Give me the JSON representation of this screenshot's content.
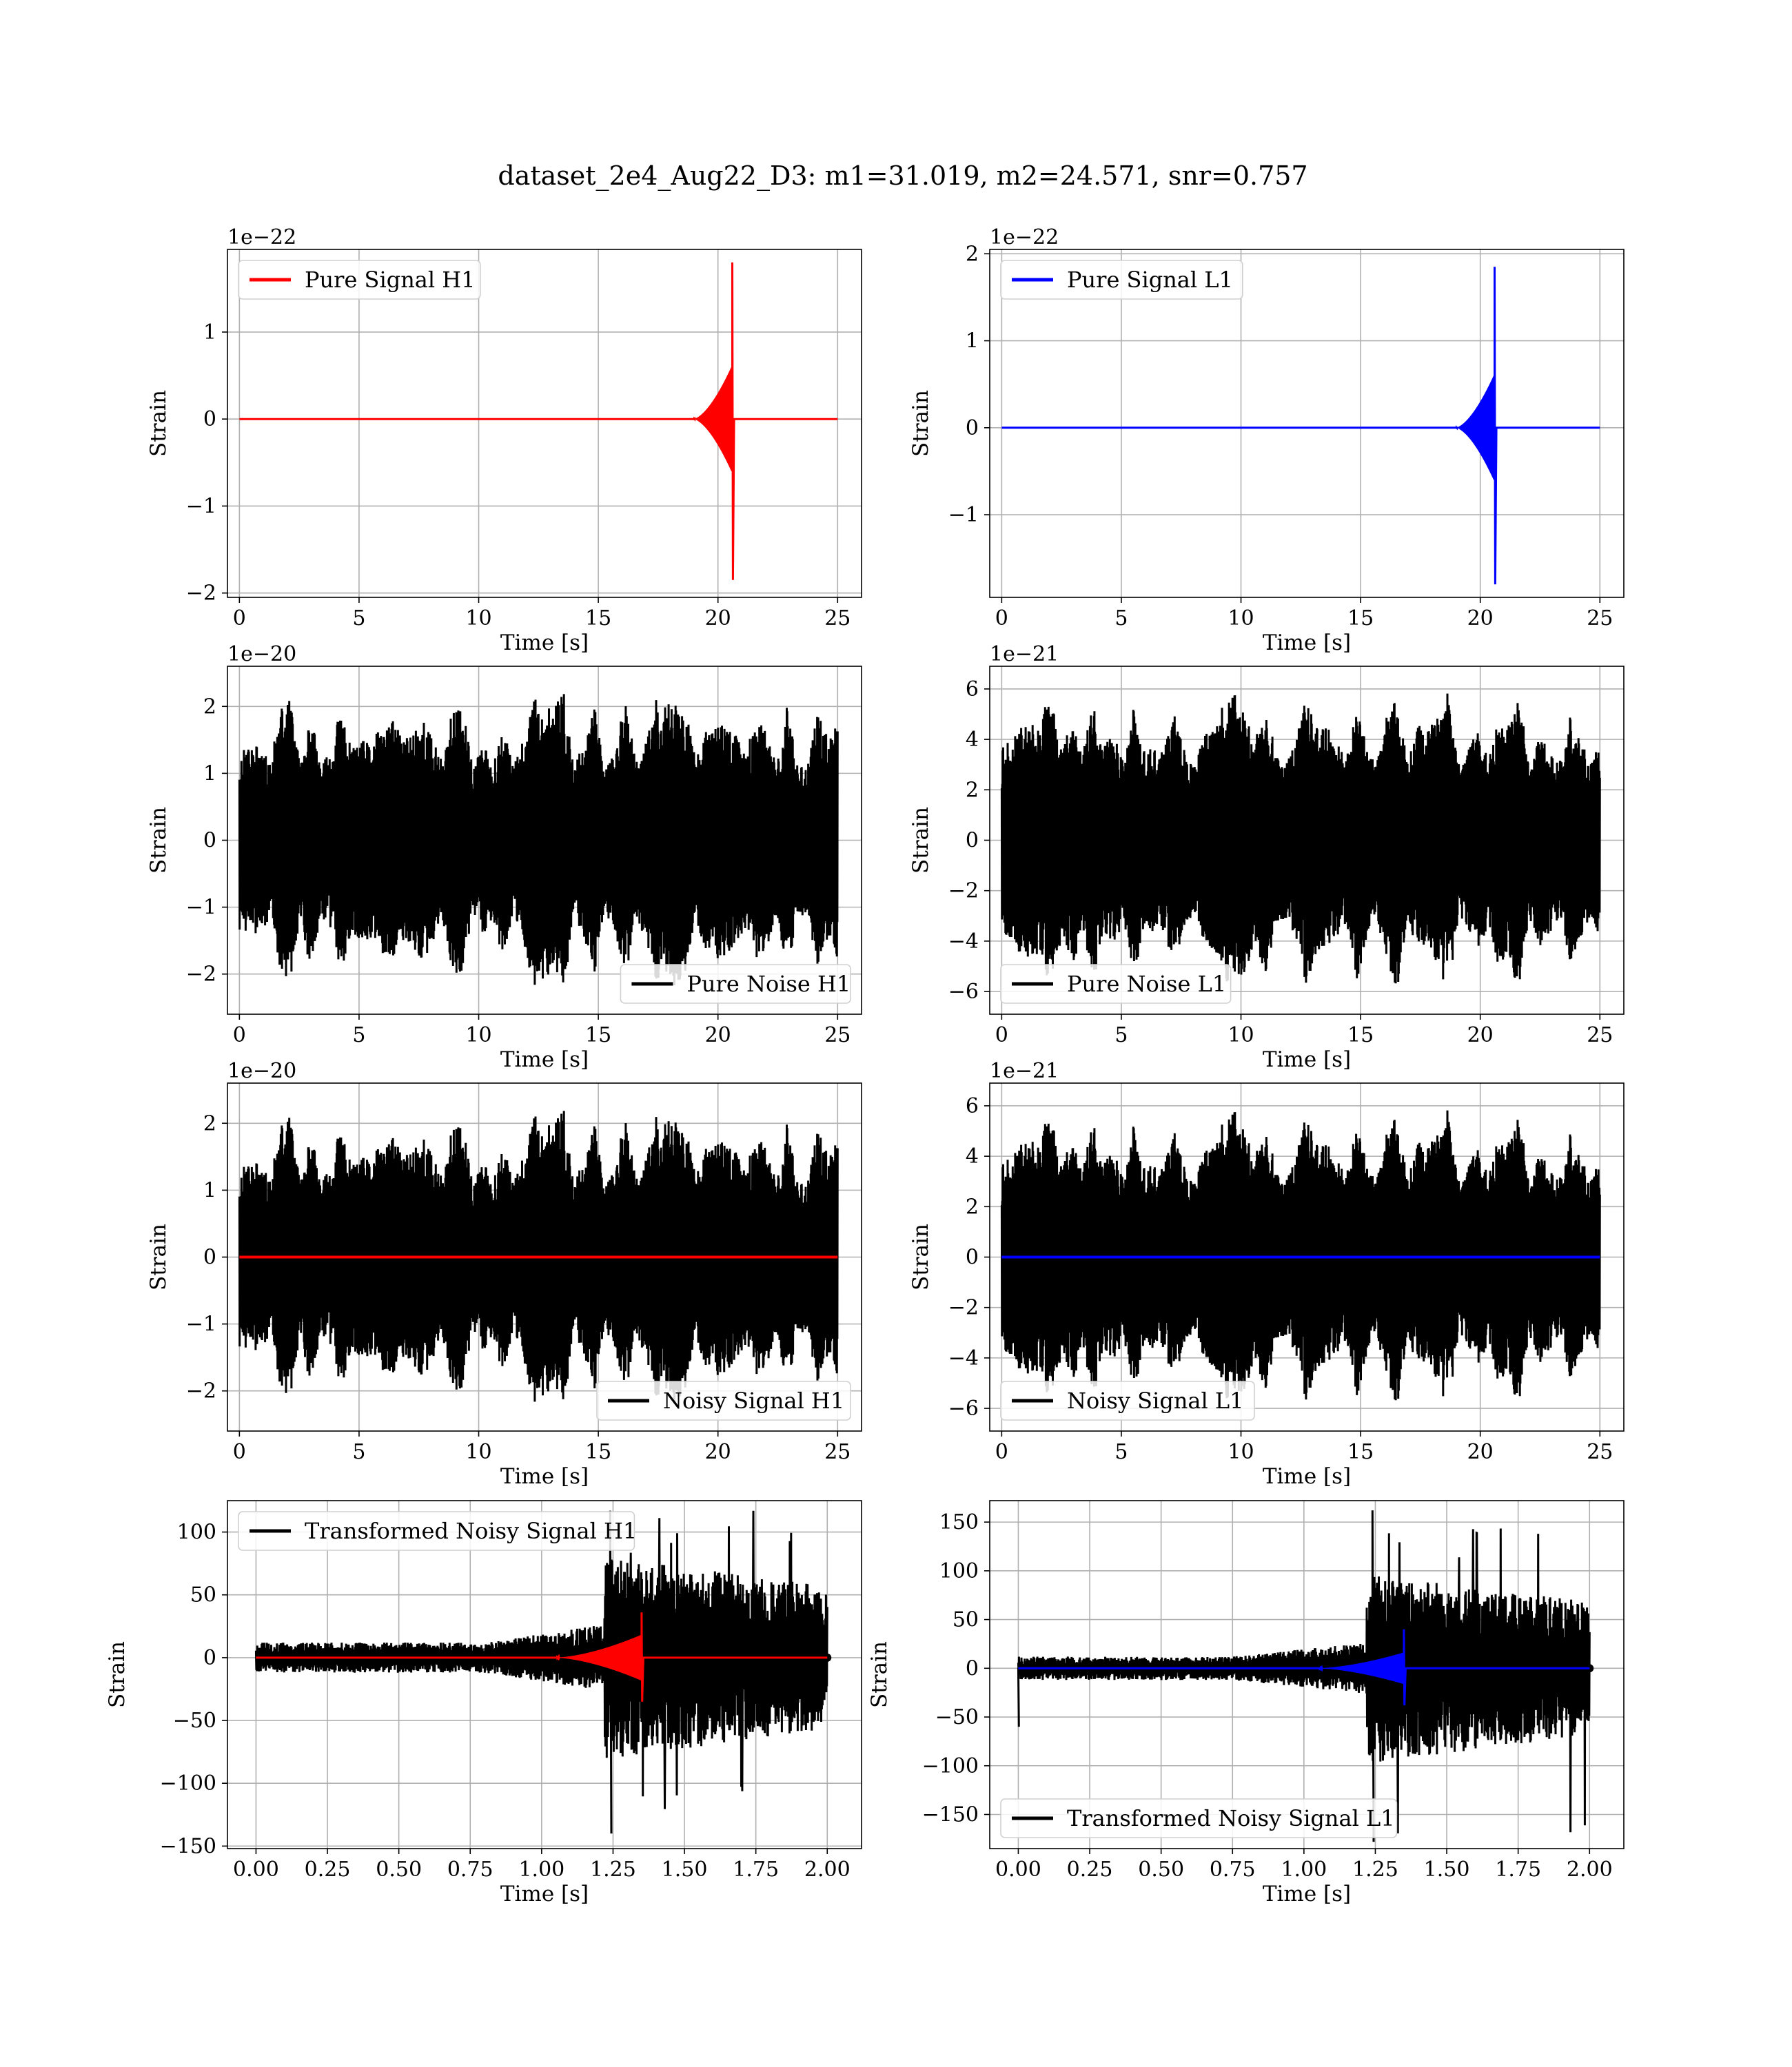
{
  "figure_title": "dataset_2e4_Aug22_D3: m1=31.019, m2=24.571, snr=0.757",
  "colors": {
    "h1_signal": "#ff0000",
    "l1_signal": "#0000ff",
    "noise": "#000000",
    "grid": "#b0b0b0"
  },
  "chart_data": [
    {
      "id": "p0",
      "type": "line",
      "title": "",
      "xlabel": "Time [s]",
      "ylabel": "Strain",
      "offset_label": "1e−22",
      "xlim": [
        -0.5,
        26
      ],
      "ylim": [
        -2.05,
        1.95
      ],
      "xticks": [
        0,
        5,
        10,
        15,
        20,
        25
      ],
      "xticklabels": [
        "0",
        "5",
        "10",
        "15",
        "20",
        "25"
      ],
      "yticks": [
        -2,
        -1,
        0,
        1
      ],
      "yticklabels": [
        "−2",
        "−1",
        "0",
        "1"
      ],
      "grid": true,
      "legend_position": "upper left",
      "series": [
        {
          "name": "Pure Signal H1",
          "color": "#ff0000",
          "kind": "chirp",
          "x_range": [
            0,
            25
          ],
          "merger_time": 20.6,
          "amplitude": 0.6,
          "peak": 1.8,
          "peak_min": -1.85,
          "onset": 19.0
        }
      ]
    },
    {
      "id": "p1",
      "type": "line",
      "title": "",
      "xlabel": "Time [s]",
      "ylabel": "Strain",
      "offset_label": "1e−22",
      "xlim": [
        -0.5,
        26
      ],
      "ylim": [
        -1.95,
        2.05
      ],
      "xticks": [
        0,
        5,
        10,
        15,
        20,
        25
      ],
      "xticklabels": [
        "0",
        "5",
        "10",
        "15",
        "20",
        "25"
      ],
      "yticks": [
        -1,
        0,
        1,
        2
      ],
      "yticklabels": [
        "−1",
        "0",
        "1",
        "2"
      ],
      "grid": true,
      "legend_position": "upper left",
      "series": [
        {
          "name": "Pure Signal L1",
          "color": "#0000ff",
          "kind": "chirp",
          "x_range": [
            0,
            25
          ],
          "merger_time": 20.6,
          "amplitude": 0.6,
          "peak": 1.85,
          "peak_min": -1.8,
          "onset": 19.0
        }
      ]
    },
    {
      "id": "p2",
      "type": "line",
      "title": "",
      "xlabel": "Time [s]",
      "ylabel": "Strain",
      "offset_label": "1e−20",
      "xlim": [
        -0.5,
        26
      ],
      "ylim": [
        -2.6,
        2.6
      ],
      "xticks": [
        0,
        5,
        10,
        15,
        20,
        25
      ],
      "xticklabels": [
        "0",
        "5",
        "10",
        "15",
        "20",
        "25"
      ],
      "yticks": [
        -2,
        -1,
        0,
        1,
        2
      ],
      "yticklabels": [
        "−2",
        "−1",
        "0",
        "1",
        "2"
      ],
      "grid": true,
      "legend_position": "lower right",
      "series": [
        {
          "name": "Pure Noise H1",
          "color": "#000000",
          "kind": "noise",
          "x_range": [
            0,
            25
          ],
          "amplitude": 2.3,
          "seed": 11
        }
      ]
    },
    {
      "id": "p3",
      "type": "line",
      "title": "",
      "xlabel": "Time [s]",
      "ylabel": "Strain",
      "offset_label": "1e−21",
      "xlim": [
        -0.5,
        26
      ],
      "ylim": [
        -6.9,
        6.9
      ],
      "xticks": [
        0,
        5,
        10,
        15,
        20,
        25
      ],
      "xticklabels": [
        "0",
        "5",
        "10",
        "15",
        "20",
        "25"
      ],
      "yticks": [
        -6,
        -4,
        -2,
        0,
        2,
        4,
        6
      ],
      "yticklabels": [
        "−6",
        "−4",
        "−2",
        "0",
        "2",
        "4",
        "6"
      ],
      "grid": true,
      "legend_position": "lower left",
      "series": [
        {
          "name": "Pure Noise L1",
          "color": "#000000",
          "kind": "noise",
          "x_range": [
            0,
            25
          ],
          "amplitude": 6.2,
          "seed": 23
        }
      ]
    },
    {
      "id": "p4",
      "type": "line",
      "title": "",
      "xlabel": "Time [s]",
      "ylabel": "Strain",
      "offset_label": "1e−20",
      "xlim": [
        -0.5,
        26
      ],
      "ylim": [
        -2.6,
        2.6
      ],
      "xticks": [
        0,
        5,
        10,
        15,
        20,
        25
      ],
      "xticklabels": [
        "0",
        "5",
        "10",
        "15",
        "20",
        "25"
      ],
      "yticks": [
        -2,
        -1,
        0,
        1,
        2
      ],
      "yticklabels": [
        "−2",
        "−1",
        "0",
        "1",
        "2"
      ],
      "grid": true,
      "legend_position": "lower right",
      "series": [
        {
          "name": "Noisy Signal H1",
          "color": "#000000",
          "kind": "noise",
          "x_range": [
            0,
            25
          ],
          "amplitude": 2.3,
          "seed": 11
        },
        {
          "name": "",
          "color": "#ff0000",
          "kind": "flat",
          "x_range": [
            0,
            25
          ],
          "value": 0
        }
      ]
    },
    {
      "id": "p5",
      "type": "line",
      "title": "",
      "xlabel": "Time [s]",
      "ylabel": "Strain",
      "offset_label": "1e−21",
      "xlim": [
        -0.5,
        26
      ],
      "ylim": [
        -6.9,
        6.9
      ],
      "xticks": [
        0,
        5,
        10,
        15,
        20,
        25
      ],
      "xticklabels": [
        "0",
        "5",
        "10",
        "15",
        "20",
        "25"
      ],
      "yticks": [
        -6,
        -4,
        -2,
        0,
        2,
        4,
        6
      ],
      "yticklabels": [
        "−6",
        "−4",
        "−2",
        "0",
        "2",
        "4",
        "6"
      ],
      "grid": true,
      "legend_position": "lower left",
      "series": [
        {
          "name": "Noisy Signal L1",
          "color": "#000000",
          "kind": "noise",
          "x_range": [
            0,
            25
          ],
          "amplitude": 6.2,
          "seed": 23
        },
        {
          "name": "",
          "color": "#0000ff",
          "kind": "flat",
          "x_range": [
            0,
            25
          ],
          "value": 0
        }
      ]
    },
    {
      "id": "p6",
      "type": "line",
      "title": "",
      "xlabel": "Time [s]",
      "ylabel": "Strain",
      "offset_label": "",
      "xlim": [
        -0.1,
        2.12
      ],
      "ylim": [
        -152,
        125
      ],
      "xticks": [
        0,
        0.25,
        0.5,
        0.75,
        1.0,
        1.25,
        1.5,
        1.75,
        2.0
      ],
      "xticklabels": [
        "0.00",
        "0.25",
        "0.50",
        "0.75",
        "1.00",
        "1.25",
        "1.50",
        "1.75",
        "2.00"
      ],
      "yticks": [
        -150,
        -100,
        -50,
        0,
        50,
        100
      ],
      "yticklabels": [
        "−150",
        "−100",
        "−50",
        "0",
        "50",
        "100"
      ],
      "grid": true,
      "legend_position": "upper left",
      "series": [
        {
          "name": "Transformed Noisy Signal H1",
          "color": "#000000",
          "kind": "whitened",
          "x_range": [
            0,
            2.0
          ],
          "pre_amplitude": 12,
          "ramp_start": 0.8,
          "burst_start": 1.22,
          "burst_amplitude": 95,
          "peak": 117,
          "trough": -140,
          "seed": 5
        },
        {
          "name": "",
          "color": "#ff0000",
          "kind": "chirp",
          "x_range": [
            0,
            2.0
          ],
          "merger_time": 1.35,
          "amplitude": 18,
          "peak": 36,
          "peak_min": -35,
          "onset": 1.05
        }
      ]
    },
    {
      "id": "p7",
      "type": "line",
      "title": "",
      "xlabel": "Time [s]",
      "ylabel": "Strain",
      "offset_label": "",
      "xlim": [
        -0.1,
        2.12
      ],
      "ylim": [
        -185,
        172
      ],
      "xticks": [
        0,
        0.25,
        0.5,
        0.75,
        1.0,
        1.25,
        1.5,
        1.75,
        2.0
      ],
      "xticklabels": [
        "0.00",
        "0.25",
        "0.50",
        "0.75",
        "1.00",
        "1.25",
        "1.50",
        "1.75",
        "2.00"
      ],
      "yticks": [
        -150,
        -100,
        -50,
        0,
        50,
        100,
        150
      ],
      "yticklabels": [
        "−150",
        "−100",
        "−50",
        "0",
        "50",
        "100",
        "150"
      ],
      "grid": true,
      "legend_position": "lower left",
      "series": [
        {
          "name": "Transformed Noisy Signal L1",
          "color": "#000000",
          "kind": "whitened",
          "x_range": [
            0,
            2.0
          ],
          "pre_amplitude": 12,
          "ramp_start": 0.75,
          "burst_start": 1.22,
          "burst_amplitude": 115,
          "peak": 162,
          "trough": -178,
          "start_spike": -60,
          "seed": 9
        },
        {
          "name": "",
          "color": "#0000ff",
          "kind": "chirp",
          "x_range": [
            0,
            2.0
          ],
          "merger_time": 1.35,
          "amplitude": 16,
          "peak": 40,
          "peak_min": -38,
          "onset": 1.05
        }
      ]
    }
  ]
}
